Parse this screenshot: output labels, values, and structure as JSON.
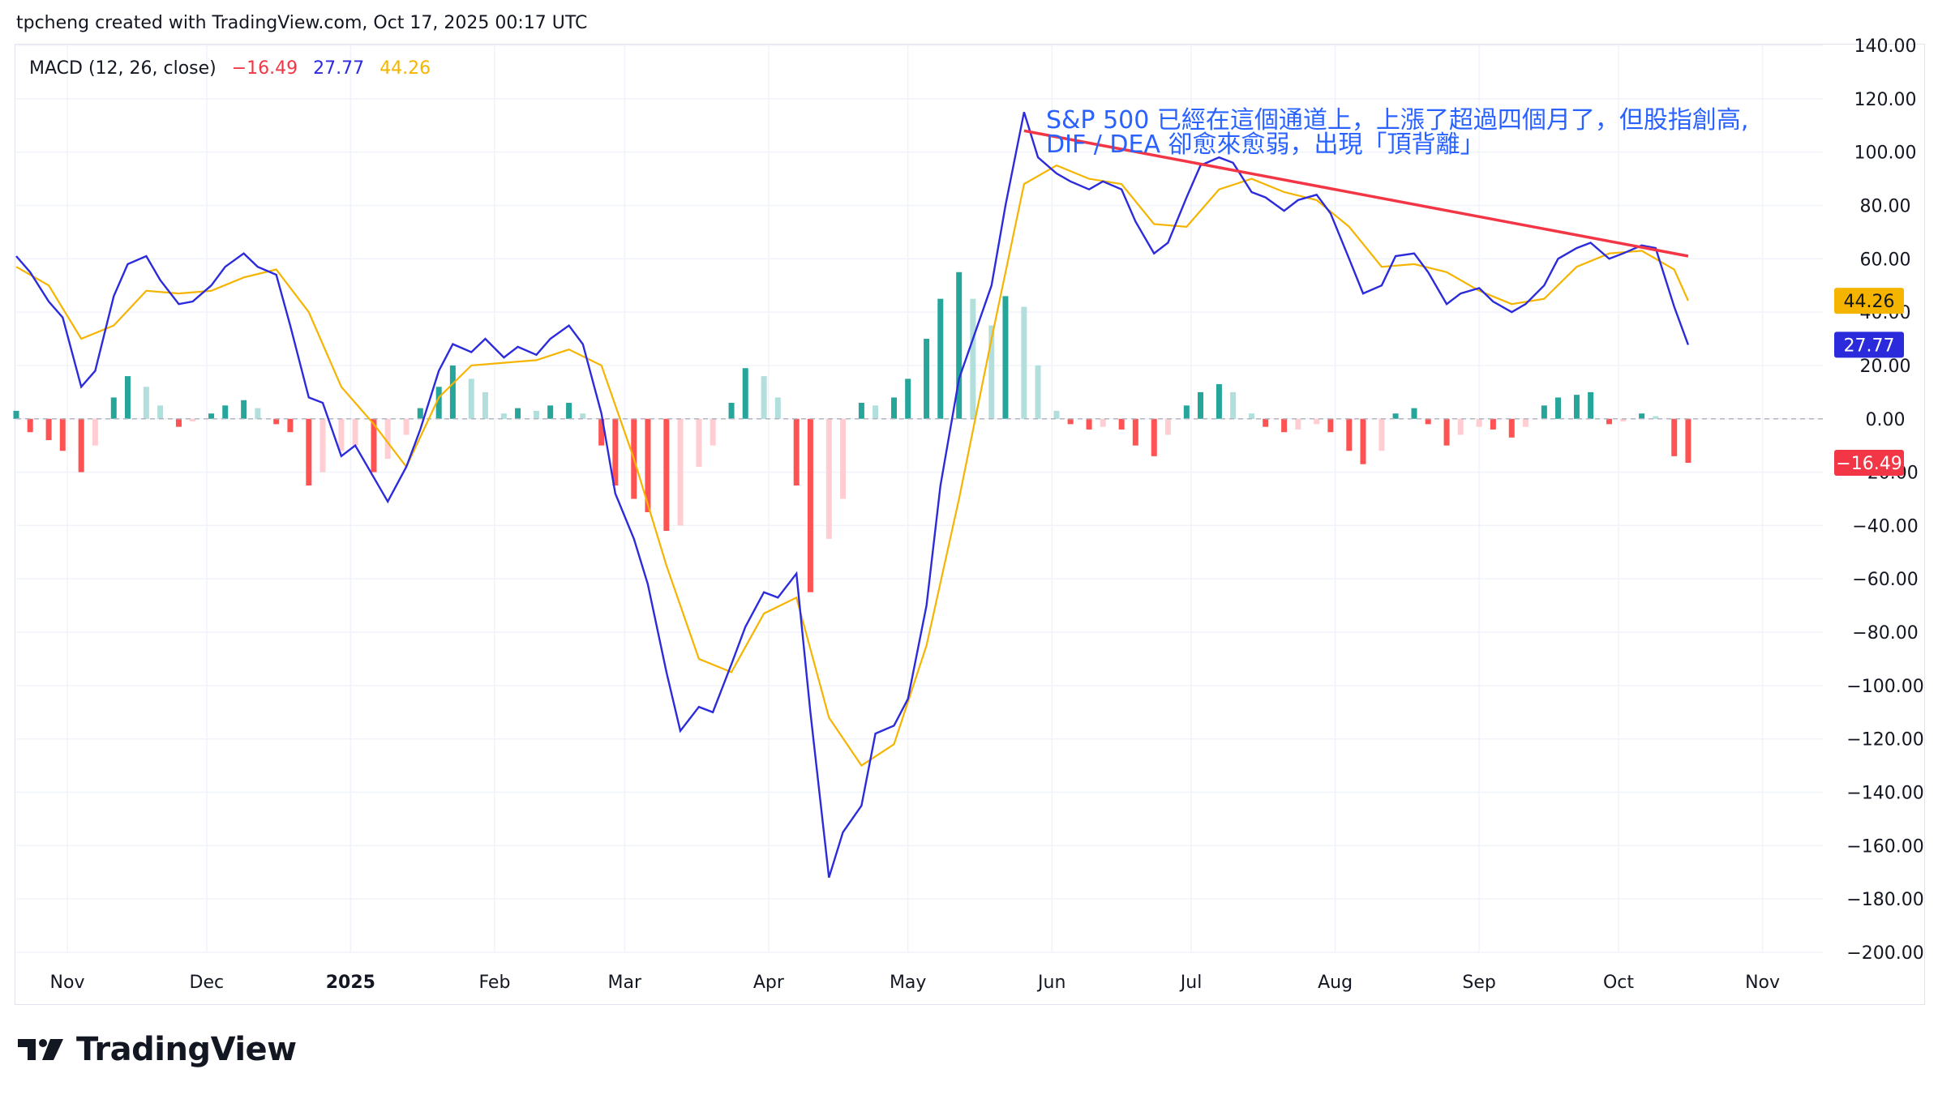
{
  "header": {
    "credit": "tpcheng created with TradingView.com, Oct 17, 2025 00:17 UTC"
  },
  "indicator": {
    "label": "MACD (12, 26, close)",
    "hist_value": "−16.49",
    "macd_value": "27.77",
    "signal_value": "44.26"
  },
  "annotation": {
    "line1": "S&P 500 已經在這個通道上，上漲了超過四個月了，但股指創高,",
    "line2": "DIF / DEA 卻愈來愈弱，出現「頂背離」"
  },
  "brand": {
    "name": "TradingView",
    "logo_icon": "tradingview-logo-icon"
  },
  "colors": {
    "macd": "#2b2bdc",
    "signal": "#f5b400",
    "hist_up_strong": "#26a69a",
    "hist_up_weak": "#b2dfdb",
    "hist_down_strong": "#ff5252",
    "hist_down_weak": "#ffcdd2",
    "trendline": "#f23645",
    "annotation": "#2962ff",
    "badge_signal": "#f5b400",
    "badge_macd": "#2b2bdc",
    "badge_hist": "#f23645"
  },
  "chart_data": {
    "type": "line",
    "x_axis_labels": [
      "Nov",
      "Dec",
      "2025",
      "Feb",
      "Mar",
      "Apr",
      "May",
      "Jun",
      "Jul",
      "Aug",
      "Sep",
      "Oct",
      "Nov"
    ],
    "x_range": [
      "2024-10-21",
      "2025-11-14"
    ],
    "y_range": [
      -200,
      140
    ],
    "y_ticks": [
      "140.00",
      "120.00",
      "100.00",
      "80.00",
      "60.00",
      "40.00",
      "20.00",
      "0.00",
      "−20.00",
      "−40.00",
      "−60.00",
      "−80.00",
      "−100.00",
      "−120.00",
      "−140.00",
      "−160.00",
      "−180.00",
      "−200.00"
    ],
    "last_values": {
      "signal": "44.26",
      "macd": "27.77",
      "histogram": "−16.49"
    },
    "series": [
      {
        "name": "MACD",
        "points": [
          [
            "2024-10-21",
            61
          ],
          [
            "2024-10-24",
            55
          ],
          [
            "2024-10-28",
            44
          ],
          [
            "2024-10-31",
            38
          ],
          [
            "2024-11-04",
            12
          ],
          [
            "2024-11-07",
            18
          ],
          [
            "2024-11-11",
            46
          ],
          [
            "2024-11-14",
            58
          ],
          [
            "2024-11-18",
            61
          ],
          [
            "2024-11-21",
            52
          ],
          [
            "2024-11-25",
            43
          ],
          [
            "2024-11-28",
            44
          ],
          [
            "2024-12-02",
            50
          ],
          [
            "2024-12-05",
            57
          ],
          [
            "2024-12-09",
            62
          ],
          [
            "2024-12-12",
            57
          ],
          [
            "2024-12-16",
            54
          ],
          [
            "2024-12-19",
            35
          ],
          [
            "2024-12-23",
            8
          ],
          [
            "2024-12-26",
            6
          ],
          [
            "2024-12-30",
            -14
          ],
          [
            "2025-01-02",
            -10
          ],
          [
            "2025-01-06",
            -22
          ],
          [
            "2025-01-09",
            -31
          ],
          [
            "2025-01-13",
            -18
          ],
          [
            "2025-01-16",
            -4
          ],
          [
            "2025-01-20",
            18
          ],
          [
            "2025-01-23",
            28
          ],
          [
            "2025-01-27",
            25
          ],
          [
            "2025-01-30",
            30
          ],
          [
            "2025-02-03",
            23
          ],
          [
            "2025-02-06",
            27
          ],
          [
            "2025-02-10",
            24
          ],
          [
            "2025-02-13",
            30
          ],
          [
            "2025-02-17",
            35
          ],
          [
            "2025-02-20",
            28
          ],
          [
            "2025-02-24",
            2
          ],
          [
            "2025-02-27",
            -28
          ],
          [
            "2025-03-03",
            -45
          ],
          [
            "2025-03-06",
            -62
          ],
          [
            "2025-03-10",
            -95
          ],
          [
            "2025-03-13",
            -117
          ],
          [
            "2025-03-17",
            -108
          ],
          [
            "2025-03-20",
            -110
          ],
          [
            "2025-03-24",
            -92
          ],
          [
            "2025-03-27",
            -78
          ],
          [
            "2025-03-31",
            -65
          ],
          [
            "2025-04-03",
            -67
          ],
          [
            "2025-04-07",
            -58
          ],
          [
            "2025-04-10",
            -110
          ],
          [
            "2025-04-14",
            -172
          ],
          [
            "2025-04-17",
            -155
          ],
          [
            "2025-04-21",
            -145
          ],
          [
            "2025-04-24",
            -118
          ],
          [
            "2025-04-28",
            -115
          ],
          [
            "2025-05-01",
            -105
          ],
          [
            "2025-05-05",
            -70
          ],
          [
            "2025-05-08",
            -25
          ],
          [
            "2025-05-12",
            15
          ],
          [
            "2025-05-15",
            30
          ],
          [
            "2025-05-19",
            50
          ],
          [
            "2025-05-22",
            80
          ],
          [
            "2025-05-26",
            115
          ],
          [
            "2025-05-29",
            98
          ],
          [
            "2025-06-02",
            92
          ],
          [
            "2025-06-05",
            89
          ],
          [
            "2025-06-09",
            86
          ],
          [
            "2025-06-12",
            89
          ],
          [
            "2025-06-16",
            86
          ],
          [
            "2025-06-19",
            74
          ],
          [
            "2025-06-23",
            62
          ],
          [
            "2025-06-26",
            66
          ],
          [
            "2025-06-30",
            83
          ],
          [
            "2025-07-03",
            95
          ],
          [
            "2025-07-07",
            98
          ],
          [
            "2025-07-10",
            96
          ],
          [
            "2025-07-14",
            85
          ],
          [
            "2025-07-17",
            83
          ],
          [
            "2025-07-21",
            78
          ],
          [
            "2025-07-24",
            82
          ],
          [
            "2025-07-28",
            84
          ],
          [
            "2025-07-31",
            77
          ],
          [
            "2025-08-04",
            60
          ],
          [
            "2025-08-07",
            47
          ],
          [
            "2025-08-11",
            50
          ],
          [
            "2025-08-14",
            61
          ],
          [
            "2025-08-18",
            62
          ],
          [
            "2025-08-21",
            55
          ],
          [
            "2025-08-25",
            43
          ],
          [
            "2025-08-28",
            47
          ],
          [
            "2025-09-01",
            49
          ],
          [
            "2025-09-04",
            44
          ],
          [
            "2025-09-08",
            40
          ],
          [
            "2025-09-11",
            43
          ],
          [
            "2025-09-15",
            50
          ],
          [
            "2025-09-18",
            60
          ],
          [
            "2025-09-22",
            64
          ],
          [
            "2025-09-25",
            66
          ],
          [
            "2025-09-29",
            60
          ],
          [
            "2025-10-02",
            62
          ],
          [
            "2025-10-06",
            65
          ],
          [
            "2025-10-09",
            64
          ],
          [
            "2025-10-13",
            42
          ],
          [
            "2025-10-16",
            27.77
          ]
        ]
      },
      {
        "name": "Signal",
        "points": [
          [
            "2024-10-21",
            57
          ],
          [
            "2024-10-28",
            50
          ],
          [
            "2024-11-04",
            30
          ],
          [
            "2024-11-11",
            35
          ],
          [
            "2024-11-18",
            48
          ],
          [
            "2024-11-25",
            47
          ],
          [
            "2024-12-02",
            48
          ],
          [
            "2024-12-09",
            53
          ],
          [
            "2024-12-16",
            56
          ],
          [
            "2024-12-23",
            40
          ],
          [
            "2024-12-30",
            12
          ],
          [
            "2025-01-06",
            -2
          ],
          [
            "2025-01-13",
            -18
          ],
          [
            "2025-01-20",
            8
          ],
          [
            "2025-01-27",
            20
          ],
          [
            "2025-02-03",
            21
          ],
          [
            "2025-02-10",
            22
          ],
          [
            "2025-02-17",
            26
          ],
          [
            "2025-02-24",
            20
          ],
          [
            "2025-03-03",
            -15
          ],
          [
            "2025-03-10",
            -55
          ],
          [
            "2025-03-17",
            -90
          ],
          [
            "2025-03-24",
            -95
          ],
          [
            "2025-03-31",
            -73
          ],
          [
            "2025-04-07",
            -67
          ],
          [
            "2025-04-14",
            -112
          ],
          [
            "2025-04-21",
            -130
          ],
          [
            "2025-04-28",
            -122
          ],
          [
            "2025-05-05",
            -85
          ],
          [
            "2025-05-12",
            -30
          ],
          [
            "2025-05-19",
            30
          ],
          [
            "2025-05-26",
            88
          ],
          [
            "2025-06-02",
            95
          ],
          [
            "2025-06-09",
            90
          ],
          [
            "2025-06-16",
            88
          ],
          [
            "2025-06-23",
            73
          ],
          [
            "2025-06-30",
            72
          ],
          [
            "2025-07-07",
            86
          ],
          [
            "2025-07-14",
            90
          ],
          [
            "2025-07-21",
            85
          ],
          [
            "2025-07-28",
            82
          ],
          [
            "2025-08-04",
            72
          ],
          [
            "2025-08-11",
            57
          ],
          [
            "2025-08-18",
            58
          ],
          [
            "2025-08-25",
            55
          ],
          [
            "2025-09-01",
            48
          ],
          [
            "2025-09-08",
            43
          ],
          [
            "2025-09-15",
            45
          ],
          [
            "2025-09-22",
            57
          ],
          [
            "2025-09-29",
            62
          ],
          [
            "2025-10-06",
            63
          ],
          [
            "2025-10-13",
            56
          ],
          [
            "2025-10-16",
            44.26
          ]
        ]
      },
      {
        "name": "Histogram",
        "points": [
          [
            "2024-10-21",
            3
          ],
          [
            "2024-10-24",
            -5
          ],
          [
            "2024-10-28",
            -8
          ],
          [
            "2024-10-31",
            -12
          ],
          [
            "2024-11-04",
            -20
          ],
          [
            "2024-11-07",
            -10
          ],
          [
            "2024-11-11",
            8
          ],
          [
            "2024-11-14",
            16
          ],
          [
            "2024-11-18",
            12
          ],
          [
            "2024-11-21",
            5
          ],
          [
            "2024-11-25",
            -3
          ],
          [
            "2024-11-28",
            -1
          ],
          [
            "2024-12-02",
            2
          ],
          [
            "2024-12-05",
            5
          ],
          [
            "2024-12-09",
            7
          ],
          [
            "2024-12-12",
            4
          ],
          [
            "2024-12-16",
            -2
          ],
          [
            "2024-12-19",
            -5
          ],
          [
            "2024-12-23",
            -25
          ],
          [
            "2024-12-26",
            -20
          ],
          [
            "2024-12-30",
            -12
          ],
          [
            "2025-01-02",
            -10
          ],
          [
            "2025-01-06",
            -20
          ],
          [
            "2025-01-09",
            -15
          ],
          [
            "2025-01-13",
            -6
          ],
          [
            "2025-01-16",
            4
          ],
          [
            "2025-01-20",
            12
          ],
          [
            "2025-01-23",
            20
          ],
          [
            "2025-01-27",
            15
          ],
          [
            "2025-01-30",
            10
          ],
          [
            "2025-02-03",
            2
          ],
          [
            "2025-02-06",
            4
          ],
          [
            "2025-02-10",
            3
          ],
          [
            "2025-02-13",
            5
          ],
          [
            "2025-02-17",
            6
          ],
          [
            "2025-02-20",
            2
          ],
          [
            "2025-02-24",
            -10
          ],
          [
            "2025-02-27",
            -25
          ],
          [
            "2025-03-03",
            -30
          ],
          [
            "2025-03-06",
            -35
          ],
          [
            "2025-03-10",
            -42
          ],
          [
            "2025-03-13",
            -40
          ],
          [
            "2025-03-17",
            -18
          ],
          [
            "2025-03-20",
            -10
          ],
          [
            "2025-03-24",
            6
          ],
          [
            "2025-03-27",
            19
          ],
          [
            "2025-03-31",
            16
          ],
          [
            "2025-04-03",
            8
          ],
          [
            "2025-04-07",
            -25
          ],
          [
            "2025-04-10",
            -65
          ],
          [
            "2025-04-14",
            -45
          ],
          [
            "2025-04-17",
            -30
          ],
          [
            "2025-04-21",
            6
          ],
          [
            "2025-04-24",
            5
          ],
          [
            "2025-04-28",
            8
          ],
          [
            "2025-05-01",
            15
          ],
          [
            "2025-05-05",
            30
          ],
          [
            "2025-05-08",
            45
          ],
          [
            "2025-05-12",
            55
          ],
          [
            "2025-05-15",
            45
          ],
          [
            "2025-05-19",
            35
          ],
          [
            "2025-05-22",
            46
          ],
          [
            "2025-05-26",
            42
          ],
          [
            "2025-05-29",
            20
          ],
          [
            "2025-06-02",
            3
          ],
          [
            "2025-06-05",
            -2
          ],
          [
            "2025-06-09",
            -4
          ],
          [
            "2025-06-12",
            -3
          ],
          [
            "2025-06-16",
            -4
          ],
          [
            "2025-06-19",
            -10
          ],
          [
            "2025-06-23",
            -14
          ],
          [
            "2025-06-26",
            -6
          ],
          [
            "2025-06-30",
            5
          ],
          [
            "2025-07-03",
            10
          ],
          [
            "2025-07-07",
            13
          ],
          [
            "2025-07-10",
            10
          ],
          [
            "2025-07-14",
            2
          ],
          [
            "2025-07-17",
            -3
          ],
          [
            "2025-07-21",
            -5
          ],
          [
            "2025-07-24",
            -4
          ],
          [
            "2025-07-28",
            -2
          ],
          [
            "2025-07-31",
            -5
          ],
          [
            "2025-08-04",
            -12
          ],
          [
            "2025-08-07",
            -17
          ],
          [
            "2025-08-11",
            -12
          ],
          [
            "2025-08-14",
            2
          ],
          [
            "2025-08-18",
            4
          ],
          [
            "2025-08-21",
            -2
          ],
          [
            "2025-08-25",
            -10
          ],
          [
            "2025-08-28",
            -6
          ],
          [
            "2025-09-01",
            -3
          ],
          [
            "2025-09-04",
            -4
          ],
          [
            "2025-09-08",
            -7
          ],
          [
            "2025-09-11",
            -3
          ],
          [
            "2025-09-15",
            5
          ],
          [
            "2025-09-18",
            8
          ],
          [
            "2025-09-22",
            9
          ],
          [
            "2025-09-25",
            10
          ],
          [
            "2025-09-29",
            -2
          ],
          [
            "2025-10-02",
            -1
          ],
          [
            "2025-10-06",
            2
          ],
          [
            "2025-10-09",
            1
          ],
          [
            "2025-10-13",
            -14
          ],
          [
            "2025-10-16",
            -16.49
          ]
        ]
      }
    ],
    "trendline": {
      "from": [
        "2025-05-26",
        108
      ],
      "to": [
        "2025-10-16",
        61
      ]
    },
    "zero_line": 0,
    "grid": true
  }
}
